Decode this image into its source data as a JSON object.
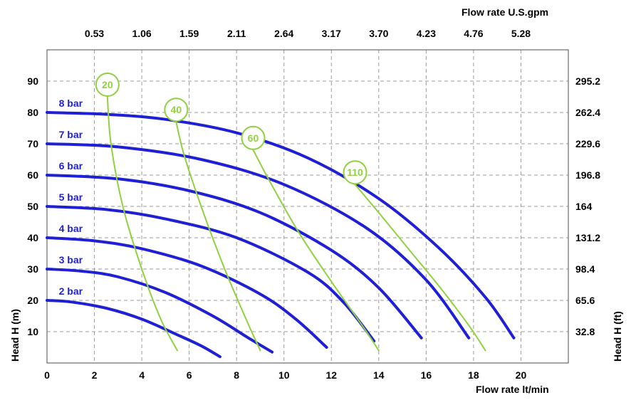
{
  "chart_data": {
    "type": "line",
    "title": "",
    "xlabel": "Flow rate  lt/min",
    "ylabel": "Head H (m)",
    "x2label": "Flow rate U.S.gpm",
    "y2label": "Head H (ft)",
    "xlim": [
      0,
      22
    ],
    "ylim": [
      0,
      100
    ],
    "x_ticks": [
      "0",
      "2",
      "4",
      "6",
      "8",
      "10",
      "12",
      "14",
      "16",
      "18",
      "20"
    ],
    "y_ticks": [
      "10",
      "20",
      "30",
      "40",
      "50",
      "60",
      "70",
      "80",
      "90"
    ],
    "x2_ticks": [
      "0.53",
      "1.06",
      "1.59",
      "2.11",
      "2.64",
      "3.17",
      "3.70",
      "4.23",
      "4.76",
      "5.28"
    ],
    "y2_ticks": [
      "32.8",
      "65.6",
      "98.4",
      "131.2",
      "164",
      "196.8",
      "229.6",
      "262.4",
      "295.2"
    ],
    "grid": true,
    "colors": {
      "pressure": "#1f1fd6",
      "air": "#8fd13f"
    },
    "pressure_series": [
      {
        "name": "2 bar",
        "x": [
          0,
          1.0,
          2.5,
          4.0,
          5.5,
          6.5,
          7.3
        ],
        "y": [
          20,
          19.5,
          17.5,
          14,
          9,
          5.5,
          2
        ]
      },
      {
        "name": "3 bar",
        "x": [
          0,
          1.5,
          3.0,
          5.0,
          7.0,
          8.5,
          9.5
        ],
        "y": [
          30,
          29.3,
          27.5,
          22.5,
          15,
          8,
          3.5
        ]
      },
      {
        "name": "4 bar",
        "x": [
          0,
          2.0,
          4.0,
          6.5,
          9.0,
          10.5,
          11.8
        ],
        "y": [
          40,
          39,
          36.5,
          31,
          22,
          14,
          5
        ]
      },
      {
        "name": "5 bar",
        "x": [
          0,
          2.5,
          5.0,
          8.0,
          11.0,
          12.5,
          13.8
        ],
        "y": [
          50,
          49,
          46,
          40,
          29,
          19.5,
          7
        ]
      },
      {
        "name": "6 bar",
        "x": [
          0,
          3.0,
          6.0,
          9.0,
          12.0,
          14.0,
          15.8
        ],
        "y": [
          60,
          58.8,
          55,
          48,
          36,
          24,
          8
        ]
      },
      {
        "name": "7 bar",
        "x": [
          0,
          3.0,
          6.5,
          10.0,
          13.5,
          16.0,
          17.8
        ],
        "y": [
          70,
          69,
          65,
          57,
          43,
          26.5,
          8
        ]
      },
      {
        "name": "8 bar",
        "x": [
          0,
          2.5,
          5.0,
          8.0,
          11.0,
          14.0,
          16.5,
          18.5,
          19.7
        ],
        "y": [
          80,
          79.4,
          77.8,
          73.5,
          65.5,
          52.5,
          37,
          21,
          8
        ]
      }
    ],
    "air_series": [
      {
        "name": "20",
        "x": [
          2.55,
          2.7,
          3.2,
          4.0,
          4.8,
          5.5
        ],
        "y": [
          85,
          70,
          50,
          30,
          14,
          4
        ]
      },
      {
        "name": "40",
        "x": [
          5.45,
          5.8,
          6.6,
          7.5,
          8.4,
          9.0
        ],
        "y": [
          77,
          66,
          48,
          30,
          14,
          4
        ]
      },
      {
        "name": "60",
        "x": [
          8.7,
          9.4,
          10.6,
          12.0,
          13.3,
          14.0
        ],
        "y": [
          68,
          58,
          42,
          26,
          12,
          4
        ]
      },
      {
        "name": "110",
        "x": [
          13.0,
          14.0,
          15.3,
          16.6,
          17.8,
          18.5
        ],
        "y": [
          57,
          48,
          36,
          24,
          12,
          4
        ]
      }
    ]
  }
}
